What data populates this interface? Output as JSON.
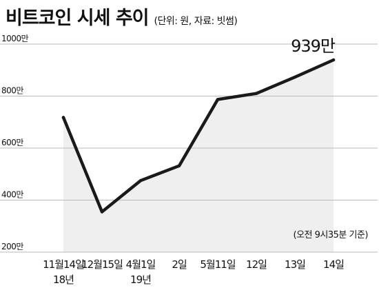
{
  "chart_data": {
    "type": "line",
    "title": "비트코인 시세 추이",
    "subtitle": "(단위: 원, 자료: 빗썸)",
    "categories": [
      {
        "line1": "11월14일",
        "line2": "18년"
      },
      {
        "line1": "12월15일",
        "line2": ""
      },
      {
        "line1": "4월1일",
        "line2": "19년"
      },
      {
        "line1": "2일",
        "line2": ""
      },
      {
        "line1": "5월11일",
        "line2": ""
      },
      {
        "line1": "12일",
        "line2": ""
      },
      {
        "line1": "13일",
        "line2": ""
      },
      {
        "line1": "14일",
        "line2": ""
      }
    ],
    "values": [
      718,
      355,
      475,
      532,
      787,
      810,
      873,
      939
    ],
    "unit": "만",
    "yticks": [
      200,
      400,
      600,
      800,
      1000
    ],
    "ylim": [
      200,
      1000
    ],
    "grid": true,
    "end_label": "939만",
    "note": "(오전 9시35분 기준)",
    "colors": {
      "line": "#1a1a1a",
      "area": "#efefef",
      "grid": "#b8b8b8"
    }
  }
}
